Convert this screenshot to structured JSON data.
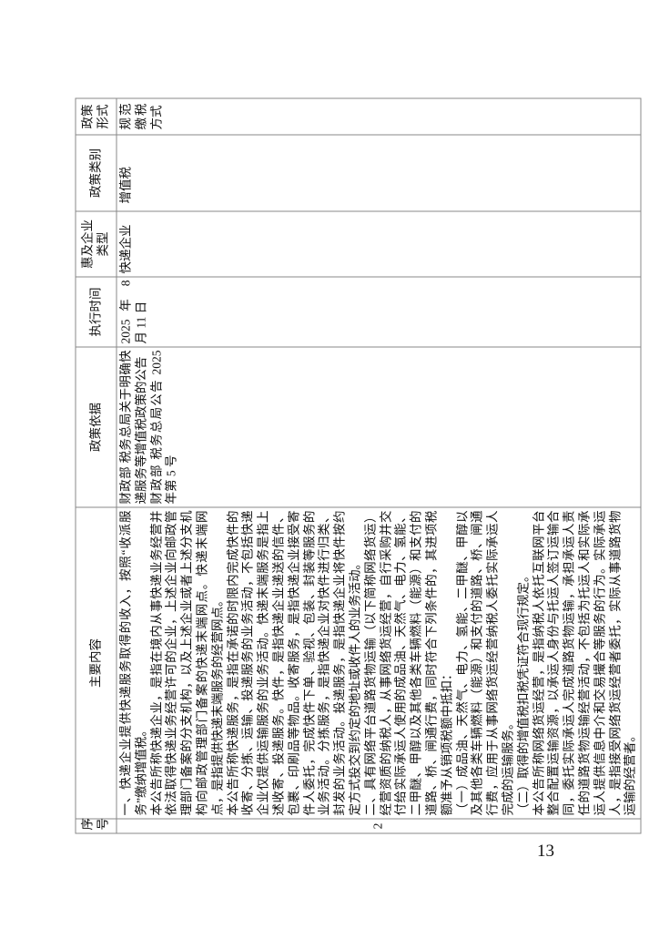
{
  "table": {
    "headers": [
      "序号",
      "主要内容",
      "政策依据",
      "执行时间",
      "惠及企业类型",
      "政策类别",
      "政策形式"
    ],
    "row": {
      "serial": "2",
      "content": [
        "一、快递企业提供快递服务取得的收入，按照“收派服务”缴纳增值税。",
        "本公告所称快递企业，是指在境内从事快递业务经营并依法取得快递业务经营许可的企业，上述企业向邮政管理部门备案的分支机构，以及上述企业或者上述分支机构向邮政管理部门备案的快递末端网点。快递末端网点，是指提供快递末端服务的经营网点。",
        "本公告所称快递服务，是指在承诺的时限内完成快件的收寄、分拣、运输、投递服务的业务活动，不包括快递企业仅提供运输服务的业务活动。快递末端服务是指上述收寄、投递服务。快件，是指快递企业递送的信件、包裹、印刷品等物品。收寄服务，是指快递企业接受寄件人委托，完成快件下单、验视、包装、封装等服务的业务活动。分拣服务，是指快递企业对快件进行归类、封发的业务活动。投递服务，是指快递企业将快件按约定方式投交到约定的地址或收件人的业务活动。",
        "二、具有网络平台道路货物运输（以下简称网络货运）经营资质的纳税人，从事网络货运经营，自行采购并交付给实际承运人使用的成品油、天然气、电力、氢能、二甲醚、甲醇以及其他各类车辆燃料（能源）和支付的道路、桥、闸通行费，同时符合下列条件的，其进项税额准予从销项税额中抵扣：",
        "（一）成品油、天然气、电力、氢能、二甲醚、甲醇以及其他各类车辆燃料（能源）和支付的道路、桥、闸通行费，应用于从事网络货运经营纳税人委托实际承运人完成的运输服务。",
        "（二）取得的增值税扣税凭证符合现行规定。",
        "本公告所称网络货运经营，是指纳税人依托互联网平台整合配置运输资源，以承运人身份与托运人签订运输合同，委托实际承运人完成道路货物运输，承担承运人责任的道路货物运输经营活动，不包括为托运人和实际承运人提供信息中介和交易撮合等服务的行为。实际承运人，是指接受网络货运经营者委托，实际从事道路货物运输的经营者。"
      ],
      "basis": [
        "财政部 税务总局关于明确快递服务等增值税政策的公告",
        "财政部 税务总局公告 2025 年第 5 号"
      ],
      "effective_date": "2025 年 8 月 11 日",
      "enterprise_type": "快递企业",
      "policy_category": "增值税",
      "policy_form": "规范缴税方式"
    }
  },
  "page_number": "13"
}
